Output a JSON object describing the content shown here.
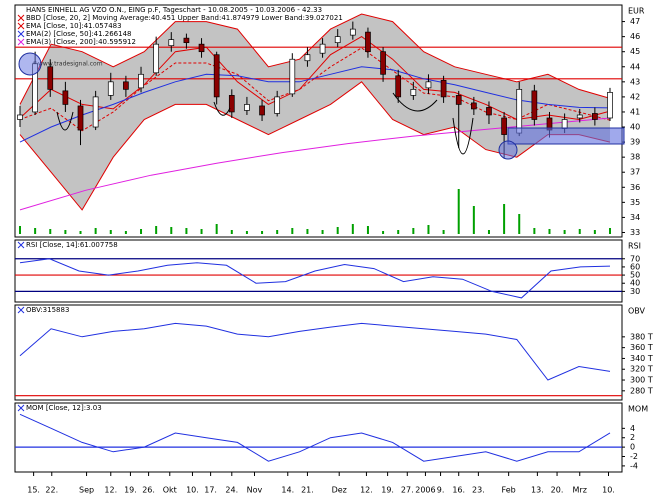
{
  "chart_data": [
    {
      "type": "candlestick",
      "title": "HANS EINHELL AG VZO O.N., EING p.F, Tageschart - 10.08.2005 - 10.03.2006 - 42.33",
      "axis_label": "EUR",
      "watermark": "©www.tradesignal.com",
      "ylim": [
        32.7,
        48.1
      ],
      "yticks": [
        33,
        34,
        35,
        36,
        37,
        38,
        39,
        40,
        41,
        42,
        43,
        44,
        45,
        46,
        47
      ],
      "open": [
        40.5,
        41.0,
        44.0,
        42.4,
        41.4,
        40.0,
        42.1,
        43.0,
        42.6,
        43.6,
        45.4,
        45.9,
        45.5,
        44.8,
        42.1,
        41.1,
        41.4,
        40.9,
        42.2,
        44.4,
        44.9,
        45.6,
        46.1,
        46.3,
        45.0,
        43.4,
        42.1,
        42.6,
        43.1,
        42.1,
        41.6,
        41.3,
        40.6,
        39.6,
        42.4,
        40.6,
        39.9,
        40.6,
        40.9,
        40.6
      ],
      "high": [
        41.4,
        45.0,
        44.5,
        43.0,
        41.8,
        42.4,
        43.6,
        43.4,
        44.0,
        46.0,
        46.3,
        46.2,
        45.9,
        45.0,
        42.5,
        42.0,
        41.8,
        42.4,
        44.9,
        45.3,
        45.9,
        46.5,
        47.0,
        46.6,
        45.3,
        43.8,
        43.0,
        43.5,
        43.4,
        42.4,
        42.0,
        41.7,
        41.0,
        43.0,
        42.8,
        41.0,
        40.9,
        41.2,
        41.3,
        42.6
      ],
      "low": [
        40.0,
        40.8,
        42.0,
        41.0,
        38.8,
        39.8,
        41.8,
        42.0,
        42.3,
        43.4,
        45.0,
        45.2,
        44.6,
        41.5,
        40.6,
        40.8,
        40.4,
        40.7,
        42.0,
        44.0,
        44.6,
        45.3,
        45.8,
        44.6,
        43.0,
        41.6,
        41.8,
        42.2,
        41.6,
        38.6,
        40.8,
        40.2,
        37.9,
        39.4,
        40.1,
        39.3,
        39.6,
        40.3,
        40.1,
        40.4
      ],
      "close": [
        40.8,
        44.2,
        42.5,
        41.5,
        39.8,
        42.0,
        43.0,
        42.5,
        43.5,
        45.5,
        45.8,
        45.6,
        45.0,
        42.0,
        41.0,
        41.5,
        40.8,
        42.0,
        44.5,
        44.8,
        45.5,
        46.0,
        46.5,
        45.0,
        43.5,
        42.0,
        42.5,
        43.0,
        42.0,
        41.5,
        41.2,
        40.8,
        39.5,
        42.5,
        40.5,
        39.8,
        40.5,
        40.8,
        40.5,
        42.3
      ],
      "up_color": "#ffffff",
      "down_color": "#8b0000",
      "series": [
        {
          "name": "BBD [Close, 20, 2] Moving Average:40.451 Upper Band:41.874979 Lower Band:39.027021",
          "color": "#e00000",
          "values": [
            40.5,
            41.25,
            39.75,
            41.0,
            42.75,
            44.25,
            44.25,
            43.5,
            41.75,
            42.5,
            44.0,
            45.25,
            43.75,
            42.25,
            42.0,
            41.0,
            40.5,
            41.5,
            41.0,
            40.45
          ],
          "upper": [
            41.5,
            45.5,
            45.0,
            44.0,
            45.0,
            47.0,
            47.0,
            46.5,
            44.0,
            44.5,
            46.5,
            47.5,
            47.0,
            45.0,
            44.0,
            43.5,
            43.0,
            43.5,
            42.5,
            41.9
          ],
          "lower": [
            39.5,
            37.0,
            34.5,
            38.0,
            40.5,
            41.5,
            41.5,
            40.5,
            39.5,
            40.5,
            41.5,
            43.0,
            40.5,
            39.5,
            40.0,
            38.5,
            38.0,
            39.5,
            39.5,
            39.0
          ]
        },
        {
          "name": "EMA [Close, 10]:41.057483",
          "color": "#e00000",
          "values": [
            40.6,
            42.5,
            41.5,
            41.2,
            42.8,
            45.0,
            45.3,
            43.0,
            41.5,
            42.5,
            44.8,
            46.0,
            44.5,
            42.5,
            42.3,
            41.5,
            40.5,
            40.8,
            40.5,
            41.06
          ]
        },
        {
          "name": "EMA(2) [Close, 50]:41.266148",
          "color": "#2030e0",
          "values": [
            39.0,
            40.0,
            40.8,
            41.5,
            42.3,
            43.0,
            43.5,
            43.4,
            43.0,
            43.0,
            43.5,
            44.0,
            43.8,
            43.2,
            42.8,
            42.3,
            41.8,
            41.5,
            41.3,
            41.27
          ]
        },
        {
          "name": "EMA(3) [Close, 200]:40.595912",
          "color": "#e020e0",
          "values": [
            34.5,
            35.8,
            36.8,
            37.6,
            38.3,
            38.9,
            39.4,
            39.8,
            40.2,
            40.6
          ]
        }
      ],
      "volume": {
        "color": "#00a000",
        "values": [
          8,
          6,
          5,
          4,
          3,
          6,
          4,
          3,
          5,
          8,
          7,
          6,
          5,
          10,
          4,
          3,
          3,
          4,
          6,
          5,
          4,
          7,
          10,
          8,
          3,
          4,
          6,
          9,
          4,
          45,
          28,
          4,
          30,
          20,
          6,
          5,
          4,
          5,
          4,
          6
        ]
      },
      "hlines": {
        "color": "#e00000",
        "values": [
          45.3,
          43.2
        ]
      }
    },
    {
      "type": "line",
      "axis_label": "RSI",
      "ylim": [
        17,
        93
      ],
      "yticks": [
        30,
        40,
        50,
        60,
        70
      ],
      "series": [
        {
          "name": "RSI [Close, 14]:61.007758",
          "color": "#2030e0",
          "values": [
            65,
            70,
            55,
            50,
            55,
            62,
            65,
            62,
            40,
            42,
            55,
            63,
            58,
            42,
            48,
            45,
            30,
            22,
            55,
            60,
            61.0
          ]
        }
      ],
      "hlines": {
        "colors": [
          "#000080",
          "#e00000",
          "#000080"
        ],
        "values": [
          70,
          50,
          30
        ]
      }
    },
    {
      "type": "line",
      "axis_label": "OBV",
      "ylim": [
        263,
        439
      ],
      "yticks": [
        {
          "value": 280,
          "label": "280 T"
        },
        {
          "value": 300,
          "label": "300 T"
        },
        {
          "value": 320,
          "label": "320 T"
        },
        {
          "value": 340,
          "label": "340 T"
        },
        {
          "value": 360,
          "label": "360 T"
        },
        {
          "value": 380,
          "label": "380 T"
        }
      ],
      "series": [
        {
          "name": "OBV:315883",
          "color": "#2030e0",
          "values": [
            345,
            395,
            380,
            390,
            395,
            405,
            400,
            385,
            380,
            390,
            398,
            405,
            400,
            395,
            390,
            385,
            375,
            300,
            325,
            315.9
          ]
        }
      ],
      "hlines": {
        "colors": [
          "#e00000"
        ],
        "values": [
          271
        ]
      }
    },
    {
      "type": "line",
      "axis_label": "MOM",
      "ylim": [
        -5.3,
        9.4
      ],
      "yticks": [
        -4,
        -2,
        0,
        2,
        4
      ],
      "series": [
        {
          "name": "MOM [Close, 12]:3.03",
          "color": "#2030e0",
          "values": [
            7,
            4,
            1,
            -1,
            0,
            3,
            2,
            1,
            -3,
            -1,
            2,
            3,
            1,
            -3,
            -2,
            -1,
            -3,
            -1,
            -1,
            3.03
          ]
        }
      ],
      "hlines": {
        "colors": [
          "#2030e0"
        ],
        "values": [
          0
        ]
      },
      "xlim": [
        -0.3,
        39.6
      ],
      "xticks": [
        {
          "value": 0.9,
          "label": "15."
        },
        {
          "value": 2.1,
          "label": "22."
        },
        {
          "value": 4.4,
          "label": "Sep"
        },
        {
          "value": 6.0,
          "label": "12."
        },
        {
          "value": 7.3,
          "label": "19."
        },
        {
          "value": 8.5,
          "label": "26."
        },
        {
          "value": 9.9,
          "label": "Okt"
        },
        {
          "value": 11.4,
          "label": "10."
        },
        {
          "value": 12.6,
          "label": "17."
        },
        {
          "value": 14.0,
          "label": "24."
        },
        {
          "value": 15.5,
          "label": "Nov"
        },
        {
          "value": 17.7,
          "label": "14."
        },
        {
          "value": 19.0,
          "label": "21."
        },
        {
          "value": 21.1,
          "label": "Dez"
        },
        {
          "value": 22.9,
          "label": "12."
        },
        {
          "value": 24.3,
          "label": "19."
        },
        {
          "value": 25.6,
          "label": "27."
        },
        {
          "value": 26.8,
          "label": "2006"
        },
        {
          "value": 27.8,
          "label": "9."
        },
        {
          "value": 29.0,
          "label": "16."
        },
        {
          "value": 30.3,
          "label": "23."
        },
        {
          "value": 32.3,
          "label": "Feb"
        },
        {
          "value": 34.2,
          "label": "13."
        },
        {
          "value": 35.5,
          "label": "20."
        },
        {
          "value": 37.0,
          "label": "Mrz"
        },
        {
          "value": 38.9,
          "label": "10."
        }
      ]
    }
  ]
}
